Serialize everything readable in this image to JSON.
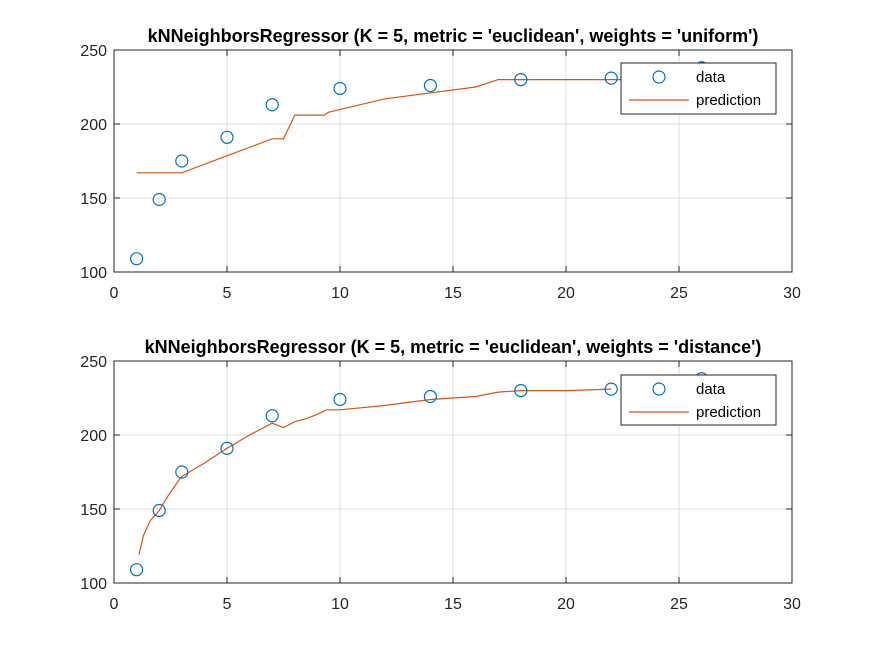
{
  "colors": {
    "data_marker": "#0072BD",
    "prediction_line": "#D95319",
    "axis": "#262626",
    "grid": "#dcdcdc"
  },
  "chart_data": [
    {
      "type": "line",
      "title": "kNNeighborsRegressor (K = 5, metric = 'euclidean', weights = 'uniform')",
      "xlabel": "",
      "ylabel": "",
      "xlim": [
        0,
        30
      ],
      "ylim": [
        100,
        250
      ],
      "xticks": [
        "0",
        "5",
        "10",
        "15",
        "20",
        "25",
        "30"
      ],
      "yticks": [
        "100",
        "150",
        "200",
        "250"
      ],
      "grid": true,
      "legend_position": "top-right",
      "series": [
        {
          "name": "data",
          "kind": "scatter",
          "marker": "circle",
          "x": [
            1,
            2,
            3,
            5,
            7,
            10,
            14,
            18,
            22,
            26
          ],
          "y": [
            109,
            149,
            175,
            191,
            213,
            224,
            226,
            230,
            231,
            238
          ]
        },
        {
          "name": "prediction",
          "kind": "line",
          "x": [
            1,
            3,
            7,
            7.5,
            8,
            9.3,
            9.5,
            12,
            16,
            17,
            22,
            26
          ],
          "y": [
            167,
            167,
            190,
            190,
            206,
            206,
            208,
            217,
            225,
            230,
            230,
            230
          ]
        }
      ]
    },
    {
      "type": "line",
      "title": "kNNeighborsRegressor (K = 5, metric = 'euclidean', weights = 'distance')",
      "xlabel": "",
      "ylabel": "",
      "xlim": [
        0,
        30
      ],
      "ylim": [
        100,
        250
      ],
      "xticks": [
        "0",
        "5",
        "10",
        "15",
        "20",
        "25",
        "30"
      ],
      "yticks": [
        "100",
        "150",
        "200",
        "250"
      ],
      "grid": true,
      "legend_position": "top-right",
      "series": [
        {
          "name": "data",
          "kind": "scatter",
          "marker": "circle",
          "x": [
            1,
            2,
            3,
            5,
            7,
            10,
            14,
            18,
            22,
            26
          ],
          "y": [
            109,
            149,
            175,
            191,
            213,
            224,
            226,
            230,
            231,
            238
          ]
        },
        {
          "name": "prediction",
          "kind": "line",
          "x": [
            1.1,
            1.3,
            1.6,
            2,
            2.4,
            2.8,
            3,
            4,
            5,
            6,
            7,
            7.5,
            8,
            8.5,
            9,
            9.4,
            10,
            12,
            14,
            16,
            17,
            18,
            20,
            22
          ],
          "y": [
            119,
            132,
            142,
            149,
            159,
            168,
            172,
            181,
            191,
            200,
            208,
            205,
            209,
            211,
            214,
            217,
            217,
            220,
            224,
            226,
            229,
            230,
            230,
            231
          ]
        }
      ]
    }
  ]
}
